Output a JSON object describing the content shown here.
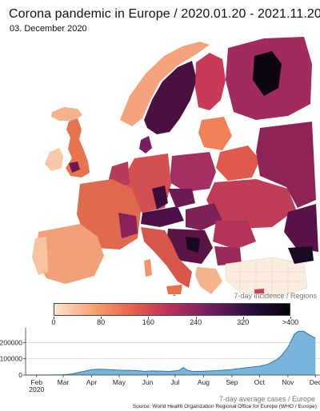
{
  "title": "Corona pandemic in Europe / 2020.01.20 - 2021.11.20",
  "subtitle": "03. December 2020",
  "map": {
    "caption": "7-day incidence / Regions"
  },
  "colorbar": {
    "ticks": [
      "0",
      "80",
      "160",
      "240",
      "320",
      ">400"
    ],
    "tick_values": [
      0,
      80,
      160,
      240,
      320,
      400
    ],
    "range": [
      0,
      400
    ],
    "colors": [
      "#fbe3cf",
      "#f7a273",
      "#e8604a",
      "#b92d5c",
      "#6e1d5e",
      "#2a0f3e",
      "#050308"
    ]
  },
  "trend": {
    "caption": "7-day average cases / Europe",
    "source": "Source: World Health Organization Regional Office for Europe (WHO / Europe)",
    "fill": "#7ab3dc",
    "line": "#2e78b0"
  },
  "chart_data": {
    "type": "area",
    "xlabel": "",
    "ylabel": "",
    "ytick_labels": [
      "0",
      "100000",
      "200000"
    ],
    "ylim": [
      0,
      290000
    ],
    "xtick_labels": [
      "Feb\n2020",
      "Mar",
      "Apr",
      "May",
      "Jun",
      "Jul",
      "Aug",
      "Sep",
      "Oct",
      "Nov",
      "Dec"
    ],
    "x": [
      "2020-01-20",
      "2020-02-01",
      "2020-02-15",
      "2020-03-01",
      "2020-03-10",
      "2020-03-20",
      "2020-04-01",
      "2020-04-10",
      "2020-04-20",
      "2020-05-01",
      "2020-05-15",
      "2020-05-25",
      "2020-05-28",
      "2020-06-05",
      "2020-06-15",
      "2020-06-25",
      "2020-07-05",
      "2020-07-10",
      "2020-07-14",
      "2020-07-20",
      "2020-08-01",
      "2020-08-15",
      "2020-09-01",
      "2020-09-15",
      "2020-10-01",
      "2020-10-10",
      "2020-10-20",
      "2020-10-25",
      "2020-11-01",
      "2020-11-05",
      "2020-11-08",
      "2020-11-12",
      "2020-11-18",
      "2020-11-25",
      "2020-12-01"
    ],
    "series": [
      {
        "values": [
          0,
          0,
          100,
          1500,
          6000,
          18000,
          33000,
          36000,
          33000,
          30000,
          28000,
          25000,
          22000,
          25000,
          24000,
          22000,
          28000,
          46000,
          30000,
          22000,
          23000,
          27000,
          34000,
          44000,
          54000,
          66000,
          95000,
          120000,
          170000,
          215000,
          250000,
          268000,
          270000,
          245000,
          227000
        ]
      }
    ]
  }
}
